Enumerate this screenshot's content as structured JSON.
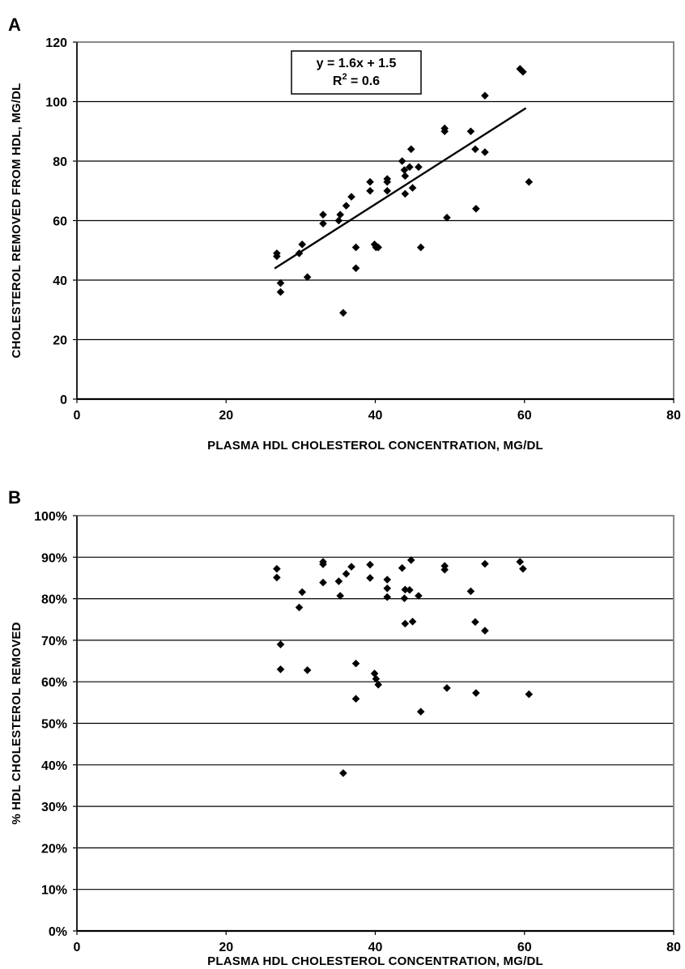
{
  "chart_data": [
    {
      "panel": "A",
      "type": "scatter",
      "xlabel": "PLASMA HDL CHOLESTEROL CONCENTRATION, MG/DL",
      "ylabel": "CHOLESTEROL REMOVED FROM HDL, MG/DL",
      "xlim": [
        0,
        80
      ],
      "ylim": [
        0,
        120
      ],
      "xticks": [
        "0",
        "20",
        "40",
        "60",
        "80"
      ],
      "yticks": [
        "0",
        "20",
        "40",
        "60",
        "80",
        "100",
        "120"
      ],
      "grid": true,
      "trendline": {
        "slope": 1.6,
        "intercept": 1.5,
        "x_range": [
          26.5,
          60.2
        ]
      },
      "annotation": {
        "equation": "y = 1.6x + 1.5",
        "r2_prefix": "R",
        "r2_sup": "2",
        "r2_suffix": " = 0.6"
      },
      "series": [
        {
          "x": [
            26.8,
            26.8,
            27.3,
            27.3,
            29.8,
            30.2,
            30.9,
            33.0,
            33.0,
            35.1,
            35.3,
            35.7,
            36.1,
            36.8,
            37.4,
            37.4,
            39.3,
            39.3,
            39.9,
            40.1,
            40.4,
            41.6,
            41.6,
            41.6,
            43.6,
            43.9,
            44.0,
            44.0,
            44.6,
            44.8,
            45.0,
            45.8,
            46.1,
            49.3,
            49.3,
            49.6,
            52.8,
            53.4,
            53.5,
            54.7,
            54.7,
            59.4,
            59.8,
            60.6
          ],
          "y": [
            49,
            48,
            39,
            36,
            49,
            52,
            41,
            62,
            59,
            60,
            62,
            29,
            65,
            68,
            51,
            44,
            73,
            70,
            52,
            51,
            51,
            74,
            73,
            70,
            80,
            77,
            75,
            69,
            78,
            84,
            71,
            78,
            51,
            91,
            90,
            61,
            90,
            84,
            64,
            102,
            83,
            111,
            110,
            73
          ]
        }
      ]
    },
    {
      "panel": "B",
      "type": "scatter",
      "xlabel": "PLASMA HDL CHOLESTEROL CONCENTRATION, MG/DL",
      "ylabel": "% HDL CHOLESTEROL REMOVED",
      "xlim": [
        0,
        80
      ],
      "ylim": [
        0,
        100
      ],
      "xticks": [
        "0",
        "20",
        "40",
        "60",
        "80"
      ],
      "yticks": [
        "0%",
        "10%",
        "20%",
        "30%",
        "40%",
        "50%",
        "60%",
        "70%",
        "80%",
        "90%",
        "100%"
      ],
      "grid": true,
      "series": [
        {
          "x": [
            26.8,
            26.8,
            27.3,
            27.3,
            29.8,
            30.2,
            30.9,
            33.0,
            33.0,
            33.0,
            35.1,
            35.3,
            35.7,
            36.1,
            36.8,
            37.4,
            37.4,
            39.3,
            39.3,
            39.9,
            40.1,
            40.4,
            41.6,
            41.6,
            41.6,
            43.6,
            43.9,
            44.0,
            44.0,
            44.6,
            44.8,
            45.0,
            45.8,
            46.1,
            49.3,
            49.3,
            49.6,
            52.8,
            53.4,
            53.5,
            54.7,
            54.7,
            59.4,
            59.8,
            60.6
          ],
          "y": [
            87.2,
            85.1,
            69.0,
            63.0,
            77.9,
            81.6,
            62.8,
            88.9,
            88.3,
            83.9,
            84.2,
            80.7,
            38.0,
            86.0,
            87.7,
            64.4,
            55.9,
            88.2,
            85.0,
            62.0,
            60.7,
            59.3,
            84.6,
            82.5,
            80.4,
            87.4,
            80.1,
            82.2,
            74.0,
            82.1,
            89.3,
            74.5,
            80.7,
            52.8,
            87.9,
            87.0,
            58.5,
            81.8,
            74.4,
            57.3,
            88.4,
            72.3,
            88.9,
            87.2,
            57.0
          ]
        }
      ]
    }
  ]
}
